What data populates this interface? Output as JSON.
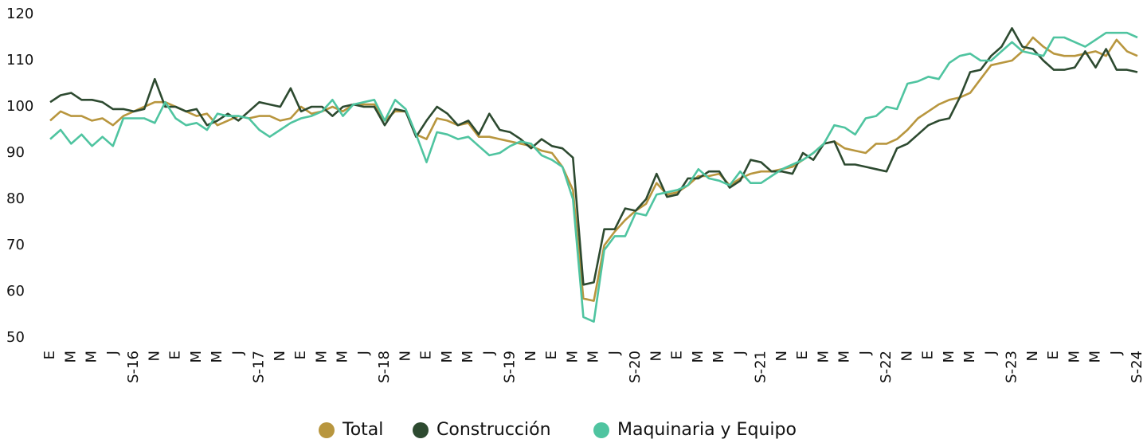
{
  "chart_data": {
    "type": "line",
    "categories": [
      "E",
      null,
      "M",
      null,
      "M",
      null,
      "J",
      null,
      "S-16",
      null,
      "N",
      null,
      "E",
      null,
      "M",
      null,
      "M",
      null,
      "J",
      null,
      "S-17",
      null,
      "N",
      null,
      "E",
      null,
      "M",
      null,
      "M",
      null,
      "J",
      null,
      "S-18",
      null,
      "N",
      null,
      "E",
      null,
      "M",
      null,
      "M",
      null,
      "J",
      null,
      "S-19",
      null,
      "N",
      null,
      "E",
      null,
      "M",
      null,
      "M",
      null,
      "J",
      null,
      "S-20",
      null,
      "N",
      null,
      "E",
      null,
      "M",
      null,
      "M",
      null,
      "J",
      null,
      "S-21",
      null,
      "N",
      null,
      "E",
      null,
      "M",
      null,
      "M",
      null,
      "J",
      null,
      "S-22",
      null,
      "N",
      null,
      "E",
      null,
      "M",
      null,
      "M",
      null,
      "J",
      null,
      "S-23",
      null,
      "N",
      null,
      "E",
      null,
      "M",
      null,
      "M",
      null,
      "J",
      null,
      "S-24"
    ],
    "series": [
      {
        "name": "Total",
        "color": "#b8963e",
        "values": [
          97,
          99,
          98,
          98,
          97,
          97.5,
          96,
          98,
          99,
          100,
          101,
          101,
          100,
          99,
          98,
          98.5,
          96,
          97,
          98,
          97.5,
          98,
          98,
          97,
          97.5,
          100,
          98.5,
          99,
          100,
          99,
          100.5,
          100.5,
          100.5,
          97,
          99,
          99,
          94,
          93,
          97.5,
          97,
          96,
          96.5,
          93.5,
          93.5,
          93,
          92.5,
          92,
          91.5,
          90.5,
          90,
          87,
          82,
          58.5,
          58,
          70,
          73,
          75.5,
          77.5,
          79,
          83.5,
          81,
          81.5,
          83,
          85,
          85,
          85.5,
          83,
          84.5,
          85.5,
          86,
          86,
          86.5,
          87,
          88.5,
          90,
          92,
          92.5,
          91,
          90.5,
          90,
          92,
          92,
          93,
          95,
          97.5,
          99,
          100.5,
          101.5,
          102,
          103,
          106,
          109,
          109.5,
          110,
          112,
          115,
          113,
          111.5,
          111,
          111,
          111.5,
          112,
          111,
          114.5,
          112,
          111
        ]
      },
      {
        "name": "Construcción",
        "color": "#2d4a30",
        "values": [
          101,
          102.5,
          103,
          101.5,
          101.5,
          101,
          99.5,
          99.5,
          99,
          99.5,
          106,
          100,
          100,
          99,
          99.5,
          96,
          97,
          98.5,
          97,
          99,
          101,
          100.5,
          100,
          104,
          99,
          100,
          100,
          98,
          100,
          100.5,
          100,
          100,
          96,
          99.5,
          99,
          93.5,
          97,
          100,
          98.5,
          96,
          97,
          94,
          98.5,
          95,
          94.5,
          93,
          91,
          93,
          91.5,
          91,
          89,
          61.5,
          62,
          73.5,
          73.5,
          78,
          77.5,
          80,
          85.5,
          80.5,
          81,
          84.5,
          84.5,
          86,
          86,
          82.5,
          84,
          88.5,
          88,
          86,
          86,
          85.5,
          90,
          88.5,
          92,
          92.5,
          87.5,
          87.5,
          87,
          86.5,
          86,
          91,
          92,
          94,
          96,
          97,
          97.5,
          102,
          107.5,
          108,
          111,
          113,
          117,
          113,
          112.5,
          110,
          108,
          108,
          108.5,
          112,
          108.5,
          112.5,
          108,
          108,
          107.5
        ]
      },
      {
        "name": "Maquinaria y Equipo",
        "color": "#4fc4a0",
        "values": [
          93,
          95,
          92,
          94,
          91.5,
          93.5,
          91.5,
          97.5,
          97.5,
          97.5,
          96.5,
          101,
          97.5,
          96,
          96.5,
          95,
          98.5,
          98,
          98,
          97.5,
          95,
          93.5,
          95,
          96.5,
          97.5,
          98,
          99,
          101.5,
          98,
          100.5,
          101,
          101.5,
          97,
          101.5,
          99.5,
          94,
          88,
          94.5,
          94,
          93,
          93.5,
          91.5,
          89.5,
          90,
          91.5,
          92.5,
          92,
          89.5,
          88.5,
          87,
          80,
          54.5,
          53.5,
          69,
          72,
          72,
          77,
          76.5,
          81,
          81.5,
          82,
          83,
          86.5,
          84.5,
          84,
          83,
          86,
          83.5,
          83.5,
          85,
          86.5,
          87.5,
          88.5,
          90,
          92,
          96,
          95.5,
          94,
          97.5,
          98,
          100,
          99.5,
          105,
          105.5,
          106.5,
          106,
          109.5,
          111,
          111.5,
          110,
          110,
          112,
          114,
          112,
          111.5,
          111,
          115,
          115,
          114,
          113,
          114.5,
          116,
          116,
          116,
          115
        ]
      }
    ],
    "ylim": [
      50,
      120
    ],
    "yticks": [
      50,
      60,
      70,
      80,
      90,
      100,
      110,
      120
    ]
  }
}
